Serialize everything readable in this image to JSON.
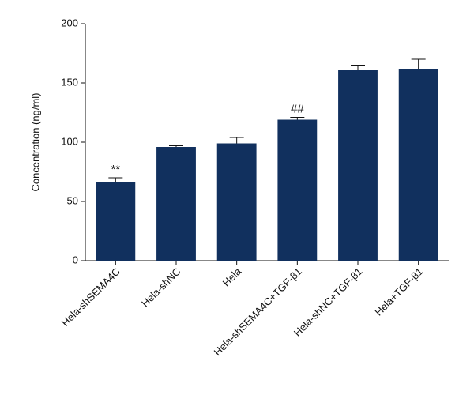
{
  "chart_data": {
    "type": "bar",
    "y_label": "Concentration (ng/ml)",
    "categories": [
      "Hela-shSEMA4C",
      "Hela-shNC",
      "Hela",
      "Hela-shSEMA4C+TGF-β1",
      "Hela-shNC+TGF-β1",
      "Hela+TGF-β1"
    ],
    "values": [
      66,
      96,
      99,
      119,
      161,
      162
    ],
    "errors": [
      4,
      1,
      5,
      2,
      4,
      8
    ],
    "annotations": [
      "**",
      null,
      null,
      "##",
      null,
      null
    ],
    "color": "#11305e",
    "ylim": [
      0,
      200
    ],
    "yticks": [
      0,
      50,
      100,
      150,
      200
    ],
    "grid": false
  }
}
